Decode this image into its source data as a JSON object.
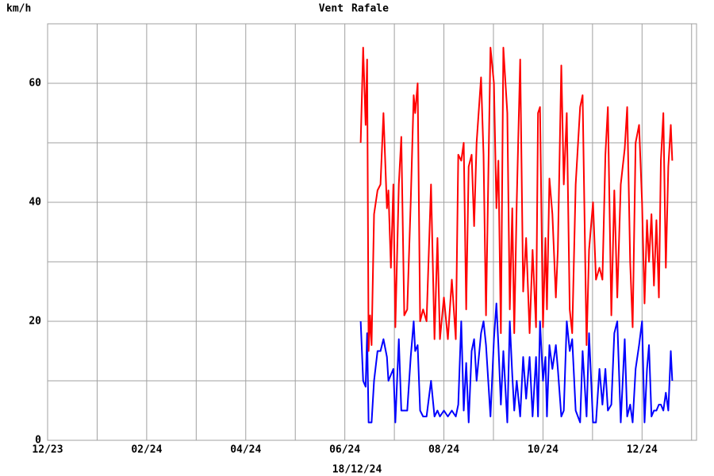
{
  "chart_data": {
    "type": "line",
    "y_label": "km/h",
    "footer": "18/12/24",
    "grid": true,
    "xlim": [
      0,
      13.1
    ],
    "xticks": [
      {
        "value": 0,
        "label": "12/23"
      },
      {
        "value": 2,
        "label": "02/24"
      },
      {
        "value": 4,
        "label": "04/24"
      },
      {
        "value": 6,
        "label": "06/24"
      },
      {
        "value": 8,
        "label": "08/24"
      },
      {
        "value": 10,
        "label": "10/24"
      },
      {
        "value": 12,
        "label": "12/24"
      }
    ],
    "x_minor_ticks": [
      1,
      3,
      5,
      7,
      9,
      11,
      13
    ],
    "ylim": [
      0,
      70
    ],
    "yticks": [
      0,
      20,
      40,
      60
    ],
    "y_minor_ticks": [
      10,
      30,
      50
    ],
    "x": [
      6.32,
      6.37,
      6.42,
      6.45,
      6.48,
      6.51,
      6.54,
      6.59,
      6.66,
      6.72,
      6.78,
      6.85,
      6.88,
      6.93,
      6.98,
      7.02,
      7.09,
      7.14,
      7.2,
      7.26,
      7.33,
      7.39,
      7.42,
      7.47,
      7.52,
      7.58,
      7.65,
      7.74,
      7.81,
      7.87,
      7.92,
      8,
      8.08,
      8.16,
      8.24,
      8.29,
      8.35,
      8.4,
      8.45,
      8.5,
      8.56,
      8.61,
      8.66,
      8.75,
      8.8,
      8.85,
      8.94,
      9.01,
      9.06,
      9.1,
      9.15,
      9.2,
      9.28,
      9.33,
      9.38,
      9.42,
      9.47,
      9.54,
      9.6,
      9.66,
      9.73,
      9.79,
      9.86,
      9.9,
      9.94,
      10,
      10.05,
      10.08,
      10.13,
      10.19,
      10.26,
      10.3,
      10.37,
      10.42,
      10.48,
      10.54,
      10.59,
      10.66,
      10.75,
      10.8,
      10.88,
      10.93,
      11.01,
      11.07,
      11.14,
      11.2,
      11.26,
      11.31,
      11.38,
      11.44,
      11.5,
      11.57,
      11.65,
      11.7,
      11.76,
      11.81,
      11.87,
      11.94,
      12,
      12.05,
      12.1,
      12.14,
      12.19,
      12.24,
      12.29,
      12.34,
      12.38,
      12.43,
      12.48,
      12.53,
      12.58,
      12.61
    ],
    "series": [
      {
        "name": "Vent",
        "color": "#0000ff",
        "values": [
          20,
          10,
          9,
          18,
          3,
          3,
          3,
          10,
          15,
          15,
          17,
          14,
          10,
          11,
          12,
          3,
          17,
          5,
          5,
          5,
          14,
          20,
          15,
          16,
          5,
          4,
          4,
          10,
          4,
          5,
          4,
          5,
          4,
          5,
          4,
          6,
          20,
          5,
          13,
          3,
          15,
          17,
          10,
          18,
          20,
          16,
          4,
          17,
          23,
          16,
          6,
          15,
          3,
          20,
          11,
          5,
          10,
          4,
          14,
          7,
          14,
          4,
          14,
          4,
          20,
          10,
          14,
          4,
          16,
          12,
          16,
          12,
          4,
          5,
          20,
          15,
          17,
          5,
          3,
          15,
          4,
          18,
          3,
          3,
          12,
          6,
          12,
          5,
          6,
          18,
          20,
          3,
          17,
          4,
          6,
          3,
          12,
          16,
          20,
          3,
          12,
          16,
          4,
          5,
          5,
          6,
          6,
          5,
          8,
          5,
          15,
          10
        ]
      },
      {
        "name": "Rafale",
        "color": "#ff0000",
        "values": [
          50,
          66,
          53,
          64,
          15,
          21,
          16,
          38,
          42,
          43,
          55,
          39,
          42,
          29,
          43,
          19,
          43,
          51,
          21,
          22,
          40,
          58,
          55,
          60,
          20,
          22,
          20,
          43,
          17,
          34,
          17,
          24,
          17,
          27,
          17,
          48,
          47,
          50,
          22,
          46,
          48,
          36,
          50,
          61,
          48,
          21,
          66,
          60,
          39,
          47,
          18,
          66,
          55,
          22,
          39,
          18,
          40,
          64,
          25,
          34,
          18,
          32,
          19,
          55,
          56,
          19,
          34,
          22,
          44,
          38,
          24,
          32,
          63,
          43,
          55,
          22,
          18,
          43,
          56,
          58,
          16,
          32,
          40,
          27,
          29,
          27,
          48,
          56,
          21,
          42,
          24,
          43,
          49,
          56,
          30,
          19,
          50,
          53,
          40,
          23,
          37,
          30,
          38,
          26,
          37,
          24,
          47,
          55,
          29,
          46,
          53,
          47
        ]
      }
    ]
  }
}
